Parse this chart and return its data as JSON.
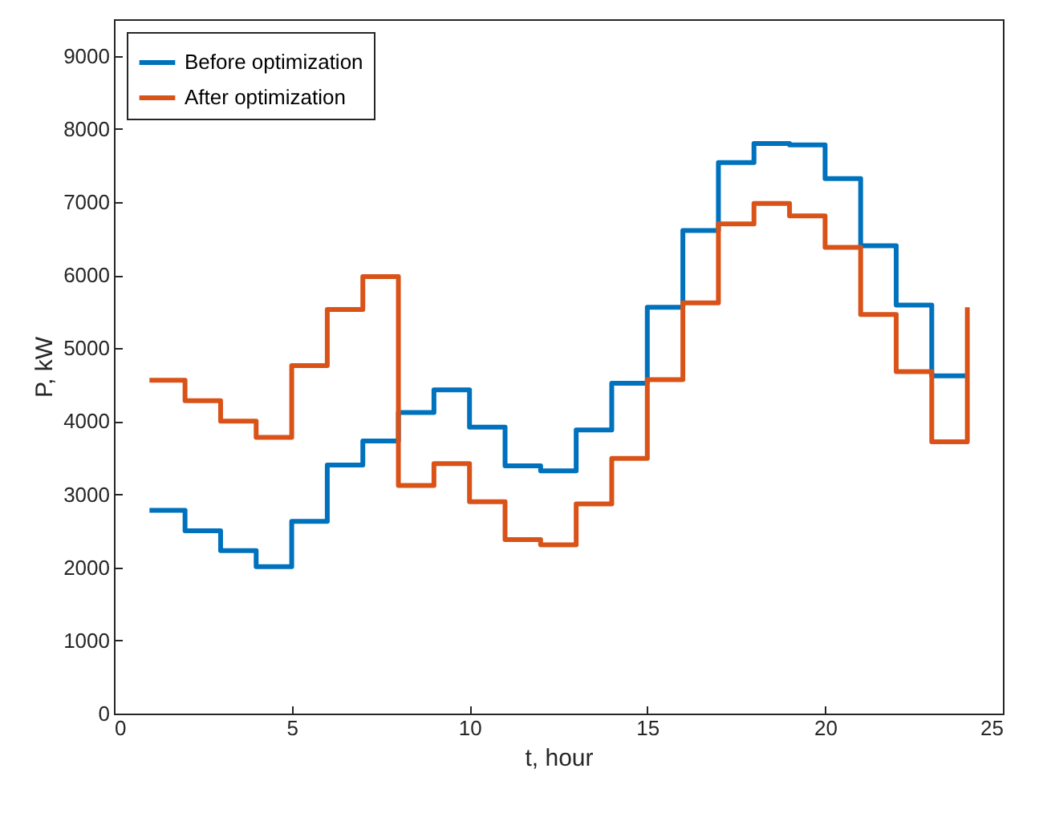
{
  "chart_data": {
    "type": "step",
    "xlabel": "t, hour",
    "ylabel": "P, kW",
    "xlim": [
      0,
      25
    ],
    "xticks": [
      0,
      5,
      10,
      15,
      20,
      25
    ],
    "ylim": [
      0,
      9500
    ],
    "yticks": [
      0,
      1000,
      2000,
      3000,
      4000,
      5000,
      6000,
      7000,
      8000,
      9000
    ],
    "grid": false,
    "legend": "top left",
    "line_style": "solid",
    "x": [
      1,
      2,
      3,
      4,
      5,
      6,
      7,
      8,
      9,
      10,
      11,
      12,
      13,
      14,
      15,
      16,
      17,
      18,
      19,
      20,
      21,
      22,
      23,
      24
    ],
    "series": [
      {
        "name": "Before optimization",
        "color": "#0072bd",
        "values": [
          2780,
          2500,
          2230,
          2010,
          2630,
          3400,
          3730,
          4120,
          4430,
          3920,
          3390,
          3320,
          3880,
          4520,
          5560,
          6610,
          7540,
          7800,
          7780,
          7320,
          6400,
          5590,
          4620,
          4620
        ]
      },
      {
        "name": "After optimization",
        "color": "#d95319",
        "values": [
          4560,
          4280,
          4000,
          3780,
          4760,
          5530,
          5980,
          3120,
          3420,
          2900,
          2380,
          2310,
          2870,
          3490,
          4570,
          5620,
          6700,
          6980,
          6810,
          6380,
          5460,
          4680,
          3720,
          5560
        ]
      }
    ]
  }
}
